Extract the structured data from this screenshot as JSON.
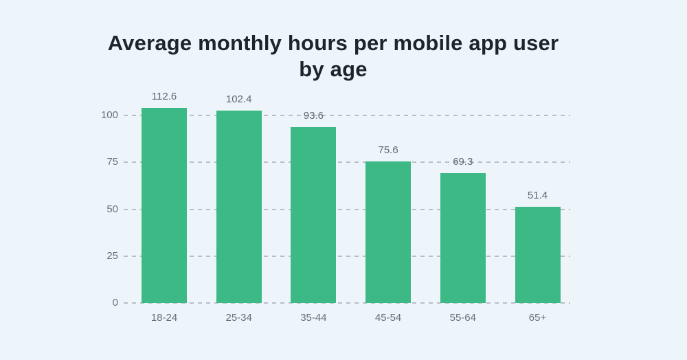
{
  "page": {
    "background_color": "#eef5fa"
  },
  "chart_data": {
    "type": "bar",
    "title": "Average monthly hours per mobile app user by age",
    "categories": [
      "18-24",
      "25-34",
      "35-44",
      "45-54",
      "55-64",
      "65+"
    ],
    "values": [
      112.6,
      102.4,
      93.6,
      75.6,
      69.3,
      51.4
    ],
    "value_labels": [
      "112.6",
      "102.4",
      "93.6",
      "75.6",
      "69.3",
      "51.4"
    ],
    "xlabel": "",
    "ylabel": "",
    "ylim": [
      0,
      100
    ],
    "yticks": [
      0,
      25,
      50,
      75,
      100
    ],
    "grid": "horizontal-dashed",
    "legend": "none",
    "bar_color": "#3cb985",
    "gridline_color": "#b7bec6",
    "axis_label_color": "#67707a",
    "value_label_color": "#5f6871",
    "title_color": "#1c242c",
    "background_color": "#eef5fa"
  }
}
